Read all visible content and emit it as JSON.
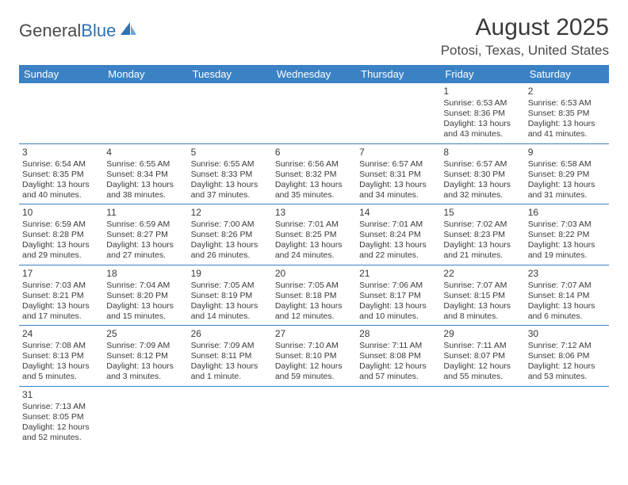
{
  "logo": {
    "word1": "General",
    "word2": "Blue"
  },
  "header": {
    "title": "August 2025",
    "location": "Potosi, Texas, United States"
  },
  "colors": {
    "header_bg": "#3b82c4",
    "header_text": "#ffffff",
    "border": "#3b82c4",
    "text": "#3a3a3a",
    "logo_blue": "#2d72b5"
  },
  "day_labels": [
    "Sunday",
    "Monday",
    "Tuesday",
    "Wednesday",
    "Thursday",
    "Friday",
    "Saturday"
  ],
  "weeks": [
    [
      null,
      null,
      null,
      null,
      null,
      {
        "n": "1",
        "sunrise": "6:53 AM",
        "sunset": "8:36 PM",
        "day_h": "13",
        "day_m": "43"
      },
      {
        "n": "2",
        "sunrise": "6:53 AM",
        "sunset": "8:35 PM",
        "day_h": "13",
        "day_m": "41"
      }
    ],
    [
      {
        "n": "3",
        "sunrise": "6:54 AM",
        "sunset": "8:35 PM",
        "day_h": "13",
        "day_m": "40"
      },
      {
        "n": "4",
        "sunrise": "6:55 AM",
        "sunset": "8:34 PM",
        "day_h": "13",
        "day_m": "38"
      },
      {
        "n": "5",
        "sunrise": "6:55 AM",
        "sunset": "8:33 PM",
        "day_h": "13",
        "day_m": "37"
      },
      {
        "n": "6",
        "sunrise": "6:56 AM",
        "sunset": "8:32 PM",
        "day_h": "13",
        "day_m": "35"
      },
      {
        "n": "7",
        "sunrise": "6:57 AM",
        "sunset": "8:31 PM",
        "day_h": "13",
        "day_m": "34"
      },
      {
        "n": "8",
        "sunrise": "6:57 AM",
        "sunset": "8:30 PM",
        "day_h": "13",
        "day_m": "32"
      },
      {
        "n": "9",
        "sunrise": "6:58 AM",
        "sunset": "8:29 PM",
        "day_h": "13",
        "day_m": "31"
      }
    ],
    [
      {
        "n": "10",
        "sunrise": "6:59 AM",
        "sunset": "8:28 PM",
        "day_h": "13",
        "day_m": "29"
      },
      {
        "n": "11",
        "sunrise": "6:59 AM",
        "sunset": "8:27 PM",
        "day_h": "13",
        "day_m": "27"
      },
      {
        "n": "12",
        "sunrise": "7:00 AM",
        "sunset": "8:26 PM",
        "day_h": "13",
        "day_m": "26"
      },
      {
        "n": "13",
        "sunrise": "7:01 AM",
        "sunset": "8:25 PM",
        "day_h": "13",
        "day_m": "24"
      },
      {
        "n": "14",
        "sunrise": "7:01 AM",
        "sunset": "8:24 PM",
        "day_h": "13",
        "day_m": "22"
      },
      {
        "n": "15",
        "sunrise": "7:02 AM",
        "sunset": "8:23 PM",
        "day_h": "13",
        "day_m": "21"
      },
      {
        "n": "16",
        "sunrise": "7:03 AM",
        "sunset": "8:22 PM",
        "day_h": "13",
        "day_m": "19"
      }
    ],
    [
      {
        "n": "17",
        "sunrise": "7:03 AM",
        "sunset": "8:21 PM",
        "day_h": "13",
        "day_m": "17"
      },
      {
        "n": "18",
        "sunrise": "7:04 AM",
        "sunset": "8:20 PM",
        "day_h": "13",
        "day_m": "15"
      },
      {
        "n": "19",
        "sunrise": "7:05 AM",
        "sunset": "8:19 PM",
        "day_h": "13",
        "day_m": "14"
      },
      {
        "n": "20",
        "sunrise": "7:05 AM",
        "sunset": "8:18 PM",
        "day_h": "13",
        "day_m": "12"
      },
      {
        "n": "21",
        "sunrise": "7:06 AM",
        "sunset": "8:17 PM",
        "day_h": "13",
        "day_m": "10"
      },
      {
        "n": "22",
        "sunrise": "7:07 AM",
        "sunset": "8:15 PM",
        "day_h": "13",
        "day_m": "8"
      },
      {
        "n": "23",
        "sunrise": "7:07 AM",
        "sunset": "8:14 PM",
        "day_h": "13",
        "day_m": "6"
      }
    ],
    [
      {
        "n": "24",
        "sunrise": "7:08 AM",
        "sunset": "8:13 PM",
        "day_h": "13",
        "day_m": "5"
      },
      {
        "n": "25",
        "sunrise": "7:09 AM",
        "sunset": "8:12 PM",
        "day_h": "13",
        "day_m": "3"
      },
      {
        "n": "26",
        "sunrise": "7:09 AM",
        "sunset": "8:11 PM",
        "day_h": "13",
        "day_m": "1",
        "unit": "minute"
      },
      {
        "n": "27",
        "sunrise": "7:10 AM",
        "sunset": "8:10 PM",
        "day_h": "12",
        "day_m": "59"
      },
      {
        "n": "28",
        "sunrise": "7:11 AM",
        "sunset": "8:08 PM",
        "day_h": "12",
        "day_m": "57"
      },
      {
        "n": "29",
        "sunrise": "7:11 AM",
        "sunset": "8:07 PM",
        "day_h": "12",
        "day_m": "55"
      },
      {
        "n": "30",
        "sunrise": "7:12 AM",
        "sunset": "8:06 PM",
        "day_h": "12",
        "day_m": "53"
      }
    ],
    [
      {
        "n": "31",
        "sunrise": "7:13 AM",
        "sunset": "8:05 PM",
        "day_h": "12",
        "day_m": "52"
      },
      null,
      null,
      null,
      null,
      null,
      null
    ]
  ],
  "labels": {
    "sunrise": "Sunrise:",
    "sunset": "Sunset:",
    "daylight": "Daylight:",
    "hours": "hours",
    "and": "and",
    "minutes_default": "minutes"
  }
}
